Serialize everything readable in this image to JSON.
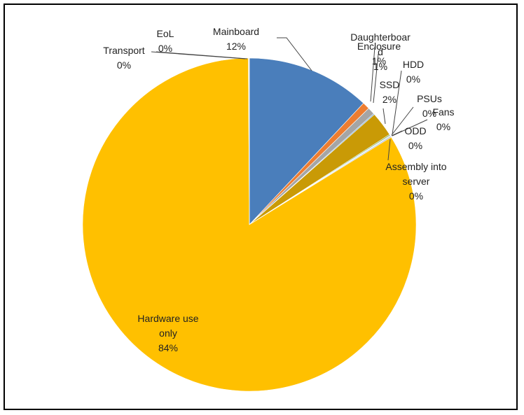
{
  "chart_data": {
    "type": "pie",
    "slices": [
      {
        "name": "Mainboard",
        "value": 12,
        "label": "12%",
        "color": "#4a7ebb"
      },
      {
        "name": "Daughterboard",
        "value": 0.7,
        "label": "1%",
        "color": "#ed7d31"
      },
      {
        "name": "Enclosure",
        "value": 0.7,
        "label": "1%",
        "color": "#a5a5a5"
      },
      {
        "name": "HDD",
        "value": 0.1,
        "label": "0%",
        "color": "#5b9bd5"
      },
      {
        "name": "SSD",
        "value": 2.4,
        "label": "2%",
        "color": "#c99a06"
      },
      {
        "name": "PSUs",
        "value": 0.1,
        "label": "0%",
        "color": "#70ad47"
      },
      {
        "name": "Fans",
        "value": 0.05,
        "label": "0%",
        "color": "#264478"
      },
      {
        "name": "ODD",
        "value": 0.05,
        "label": "0%",
        "color": "#9e480e"
      },
      {
        "name": "Assembly into server",
        "value": 0.1,
        "label": "0%",
        "color": "#8faadc"
      },
      {
        "name": "Hardware use only",
        "value": 83.75,
        "label": "84%",
        "color": "#ffc000"
      },
      {
        "name": "Transport",
        "value": 0.05,
        "label": "0%",
        "color": "#7f7f7f"
      },
      {
        "name": "EoL",
        "value": 0.05,
        "label": "0%",
        "color": "#ffd966"
      }
    ],
    "data_labels": [
      {
        "slice": 0,
        "lines": [
          "Mainboard",
          "12%"
        ]
      },
      {
        "slice": 1,
        "lines": [
          "Daughterboar",
          "d",
          "1%"
        ]
      },
      {
        "slice": 2,
        "lines": [
          "Enclosure",
          "1%"
        ]
      },
      {
        "slice": 3,
        "lines": [
          "HDD",
          "0%"
        ]
      },
      {
        "slice": 4,
        "lines": [
          "SSD",
          "2%"
        ]
      },
      {
        "slice": 5,
        "lines": [
          "PSUs",
          "0%"
        ]
      },
      {
        "slice": 6,
        "lines": [
          "Fans",
          "0%"
        ]
      },
      {
        "slice": 7,
        "lines": [
          "ODD",
          "0%"
        ]
      },
      {
        "slice": 8,
        "lines": [
          "Assembly into",
          "server",
          "0%"
        ]
      },
      {
        "slice": 9,
        "lines": [
          "Hardware use",
          "only",
          "84%"
        ]
      },
      {
        "slice": 10,
        "lines": [
          "Transport",
          "0%"
        ]
      },
      {
        "slice": 11,
        "lines": [
          "EoL",
          "0%"
        ]
      }
    ],
    "start": "12 o'clock",
    "direction": "clockwise",
    "legend": "none"
  }
}
